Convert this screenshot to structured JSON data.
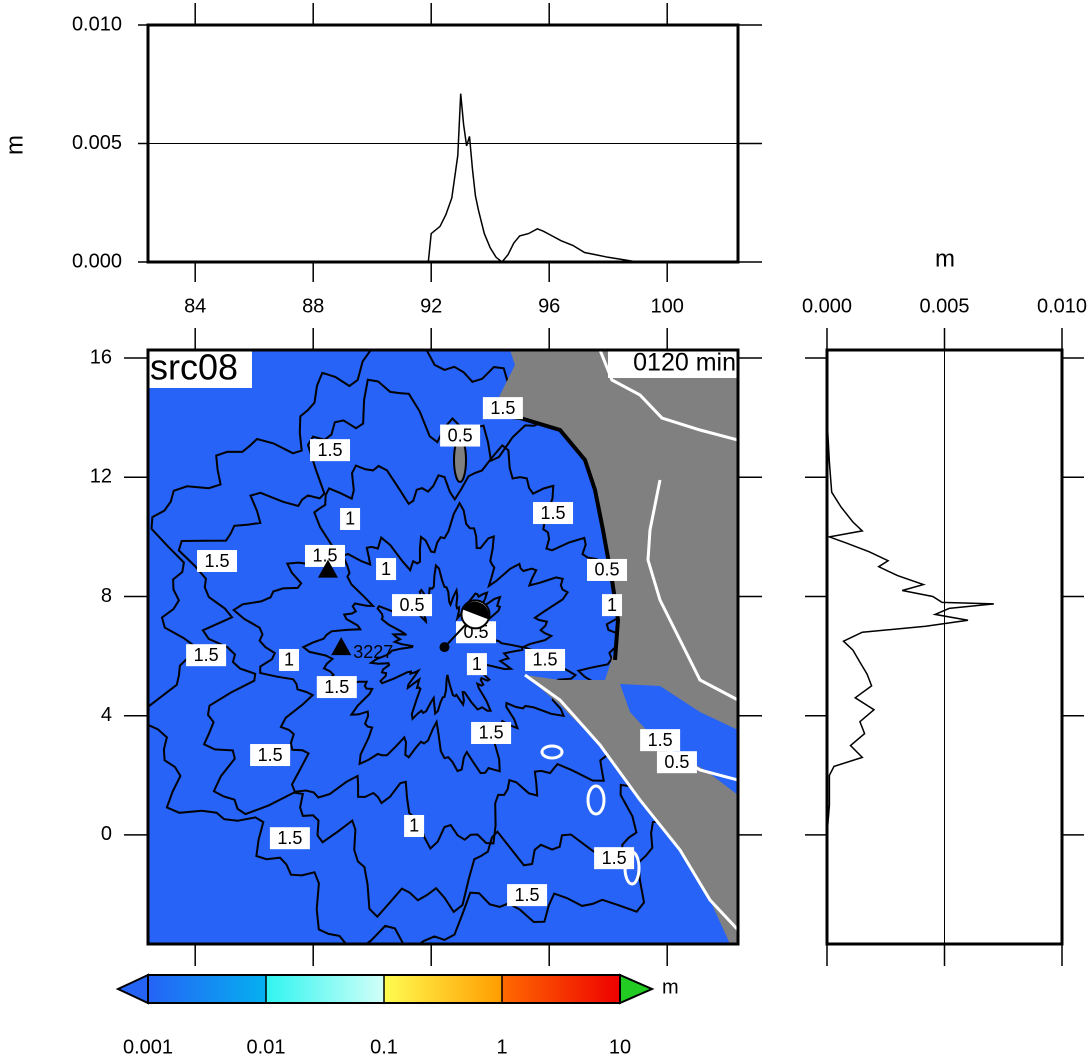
{
  "chart_data": [
    {
      "type": "line",
      "ylabel": "m",
      "xlim": [
        82.4,
        102.4
      ],
      "xticks": [
        84,
        88,
        92,
        96,
        100
      ],
      "ylim": [
        0,
        0.01
      ],
      "yticks": [
        {
          "value": 0,
          "label": "0.000"
        },
        0.005,
        {
          "value": 0.01,
          "label": "0.010"
        }
      ],
      "grid": true,
      "color": "#000000",
      "x": [
        91.9,
        92.0,
        92.3,
        92.5,
        92.7,
        92.9,
        93.0,
        93.1,
        93.2,
        93.3,
        93.4,
        93.5,
        93.6,
        93.8,
        94.0,
        94.2,
        94.4,
        94.6,
        94.8,
        95.0,
        95.3,
        95.6,
        95.8,
        96.1,
        96.4,
        96.8,
        97.2,
        97.6,
        98.0,
        98.5,
        99.0
      ],
      "values": [
        0,
        0.0012,
        0.0015,
        0.002,
        0.0027,
        0.0045,
        0.0071,
        0.0058,
        0.0049,
        0.0053,
        0.0039,
        0.0028,
        0.0022,
        0.0012,
        0.0006,
        0.0002,
        0,
        0.0003,
        0.0008,
        0.0011,
        0.0012,
        0.0014,
        0.0013,
        0.0011,
        0.0009,
        0.0007,
        0.0004,
        0.0003,
        0.0002,
        0.0001,
        0
      ]
    },
    {
      "type": "map",
      "title": "src08",
      "time_label": "0120 min",
      "xlim": [
        82.4,
        102.4
      ],
      "xticks": [
        84,
        88,
        92,
        96,
        100
      ],
      "ylim": [
        -3.66,
        16.27
      ],
      "yticks": [
        16,
        12,
        8,
        4,
        0
      ],
      "sea_color": "#2663f6",
      "land_color": "#808080",
      "stations": [
        {
          "x": 88.5,
          "y": 8.9
        },
        {
          "x": 88.95,
          "y": 6.3,
          "label": "3227"
        }
      ],
      "epicenter": {
        "x": 92.45,
        "y": 6.3
      },
      "mechanism": {
        "x": 93.5,
        "y": 7.4
      },
      "contour_labels": [
        {
          "text": "1.5",
          "x": 94.43,
          "y": 14.32
        },
        {
          "text": "0.5",
          "x": 92.98,
          "y": 13.4
        },
        {
          "text": "1.5",
          "x": 88.57,
          "y": 12.91
        },
        {
          "text": "1",
          "x": 89.25,
          "y": 10.6
        },
        {
          "text": "1.5",
          "x": 96.13,
          "y": 10.8
        },
        {
          "text": "1.5",
          "x": 84.74,
          "y": 9.19
        },
        {
          "text": "1.5",
          "x": 88.4,
          "y": 9.36
        },
        {
          "text": "1",
          "x": 90.47,
          "y": 8.92
        },
        {
          "text": "0.5",
          "x": 91.35,
          "y": 7.71
        },
        {
          "text": "0.5",
          "x": 93.52,
          "y": 6.8
        },
        {
          "text": "1",
          "x": 87.18,
          "y": 5.87
        },
        {
          "text": "1",
          "x": 93.55,
          "y": 5.73
        },
        {
          "text": "1.5",
          "x": 95.86,
          "y": 5.87
        },
        {
          "text": "1.5",
          "x": 88.8,
          "y": 4.96
        },
        {
          "text": "1.5",
          "x": 84.37,
          "y": 6.03
        },
        {
          "text": "1.5",
          "x": 94.03,
          "y": 3.42
        },
        {
          "text": "1.5",
          "x": 86.54,
          "y": 2.68
        },
        {
          "text": "1.5",
          "x": 99.76,
          "y": 3.18
        },
        {
          "text": "0.5",
          "x": 100.33,
          "y": 2.44
        },
        {
          "text": "0.5",
          "x": 97.96,
          "y": 8.89
        },
        {
          "text": "1",
          "x": 98.13,
          "y": 7.71
        },
        {
          "text": "1.5",
          "x": 87.21,
          "y": -0.11
        },
        {
          "text": "1",
          "x": 91.42,
          "y": 0.3
        },
        {
          "text": "1.5",
          "x": 95.25,
          "y": -2.02
        },
        {
          "text": "1.5",
          "x": 98.2,
          "y": -0.78
        }
      ]
    },
    {
      "type": "profile",
      "xlabel": "m",
      "xlim": [
        0,
        0.01
      ],
      "xticks": [
        {
          "value": 0,
          "label": "0.000"
        },
        0.005,
        {
          "value": 0.01,
          "label": "0.010"
        }
      ],
      "ylim": [
        -3.66,
        16.27
      ],
      "yticks": [
        16,
        12,
        8,
        4,
        0
      ],
      "grid": true,
      "color": "#000000",
      "y": [
        14.0,
        12.5,
        11.5,
        11.0,
        10.5,
        10.2,
        10.0,
        9.8,
        9.5,
        9.2,
        9.0,
        8.7,
        8.4,
        8.2,
        8.0,
        7.8,
        7.75,
        7.6,
        7.4,
        7.2,
        7.0,
        6.8,
        6.5,
        6.2,
        5.8,
        5.4,
        5.0,
        4.6,
        4.2,
        3.8,
        3.4,
        3.0,
        2.6,
        2.3,
        2.0,
        1.0,
        0.0
      ],
      "values": [
        0,
        0.0001,
        0.0002,
        0.0006,
        0.0011,
        0.0015,
        0.0001,
        0.0008,
        0.0018,
        0.0026,
        0.0022,
        0.003,
        0.0041,
        0.0032,
        0.0045,
        0.0049,
        0.0071,
        0.0052,
        0.0046,
        0.006,
        0.0042,
        0.0015,
        0.0007,
        0.0011,
        0.0014,
        0.0017,
        0.0019,
        0.0012,
        0.002,
        0.0014,
        0.0016,
        0.001,
        0.0015,
        0.0003,
        0.0001,
        0.0001,
        0
      ]
    },
    {
      "type": "colorbar",
      "unit": "m",
      "log": true,
      "xlim": [
        0.001,
        10
      ],
      "xticks": [
        0.001,
        0.01,
        0.1,
        1,
        10
      ],
      "colors": [
        [
          "#2563f5",
          "#05b0f0"
        ],
        [
          "#30f4f0",
          "#d2fff8"
        ],
        [
          "#fffc50",
          "#ff9c00"
        ],
        [
          "#ff6a00",
          "#ee0000"
        ]
      ],
      "under_color": "#2563f5",
      "over_color": "#22cc22"
    }
  ]
}
